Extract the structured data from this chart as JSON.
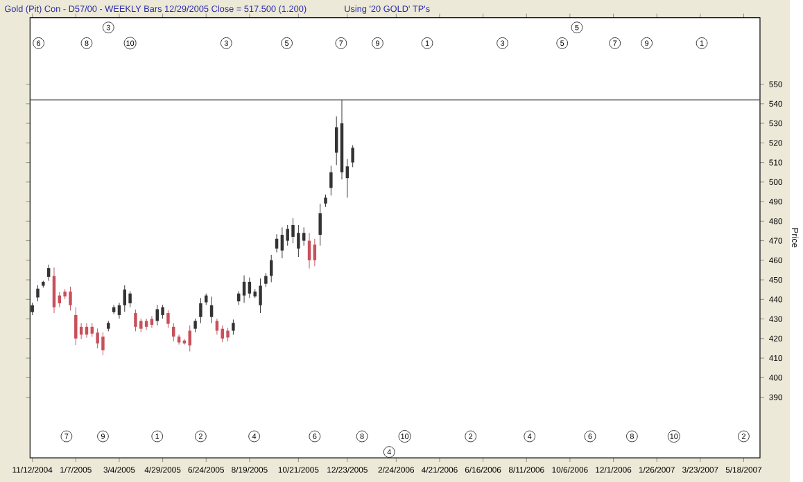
{
  "chart_data": {
    "type": "candlestick",
    "title": "Gold (Pit) Con - D57/00  - WEEKLY Bars  12/29/2005 Close = 517.500 (1.200)",
    "subtitle": "Using '20 GOLD' TP's",
    "ylabel": "Price",
    "x": [
      "2004-11-12",
      "2004-11-19",
      "2004-11-26",
      "2004-12-03",
      "2004-12-10",
      "2004-12-17",
      "2004-12-24",
      "2004-12-31",
      "2005-01-07",
      "2005-01-14",
      "2005-01-21",
      "2005-01-28",
      "2005-02-04",
      "2005-02-11",
      "2005-02-18",
      "2005-02-25",
      "2005-03-04",
      "2005-03-11",
      "2005-03-18",
      "2005-03-25",
      "2005-04-01",
      "2005-04-08",
      "2005-04-15",
      "2005-04-22",
      "2005-04-29",
      "2005-05-06",
      "2005-05-13",
      "2005-05-20",
      "2005-05-27",
      "2005-06-03",
      "2005-06-10",
      "2005-06-17",
      "2005-06-24",
      "2005-07-01",
      "2005-07-08",
      "2005-07-15",
      "2005-07-22",
      "2005-07-29",
      "2005-08-05",
      "2005-08-12",
      "2005-08-19",
      "2005-08-26",
      "2005-09-02",
      "2005-09-09",
      "2005-09-16",
      "2005-09-23",
      "2005-09-30",
      "2005-10-07",
      "2005-10-14",
      "2005-10-21",
      "2005-10-28",
      "2005-11-04",
      "2005-11-11",
      "2005-11-18",
      "2005-11-25",
      "2005-12-02",
      "2005-12-09",
      "2005-12-16",
      "2005-12-23",
      "2005-12-30"
    ],
    "ohlc": [
      [
        433.5,
        438.3,
        432,
        437
      ],
      [
        441,
        447.2,
        439,
        445.5
      ],
      [
        447,
        449.5,
        446,
        449
      ],
      [
        451.5,
        457.7,
        449.5,
        456
      ],
      [
        452,
        456.3,
        433,
        436
      ],
      [
        442,
        443.7,
        436,
        438
      ],
      [
        444,
        445.3,
        440.2,
        441.5
      ],
      [
        444,
        446.5,
        434.4,
        437
      ],
      [
        432,
        436,
        416.7,
        420
      ],
      [
        426,
        427.9,
        419.7,
        422
      ],
      [
        426,
        427.9,
        420.4,
        422
      ],
      [
        426,
        427.9,
        420.9,
        422.5
      ],
      [
        423,
        425.1,
        415,
        417.5
      ],
      [
        421,
        423.2,
        411.5,
        414
      ],
      [
        425,
        429,
        423.7,
        428
      ],
      [
        433.5,
        437.2,
        432.5,
        436
      ],
      [
        432,
        438.3,
        430.2,
        437
      ],
      [
        437,
        447.2,
        433.7,
        445
      ],
      [
        438,
        444.2,
        436,
        443
      ],
      [
        433,
        434.8,
        423.7,
        426
      ],
      [
        429,
        430.2,
        423.2,
        425
      ],
      [
        429,
        430.2,
        424.4,
        426
      ],
      [
        430,
        431.4,
        425.5,
        427
      ],
      [
        429,
        437.2,
        426.7,
        435
      ],
      [
        432,
        437.2,
        430.2,
        436
      ],
      [
        433,
        434.4,
        425.5,
        427.5
      ],
      [
        426,
        427.9,
        418.5,
        421
      ],
      [
        421,
        422,
        416.9,
        418
      ],
      [
        419,
        419.7,
        416.9,
        417.5
      ],
      [
        424,
        426.7,
        413.4,
        416.5
      ],
      [
        425,
        430.2,
        423.2,
        429
      ],
      [
        431,
        440.7,
        427.9,
        438
      ],
      [
        438.5,
        443,
        437.2,
        442
      ],
      [
        431,
        441.4,
        427.9,
        437
      ],
      [
        429,
        430.2,
        422,
        424
      ],
      [
        425,
        426.7,
        418.1,
        420
      ],
      [
        424,
        425.5,
        418.5,
        420.5
      ],
      [
        424,
        429.7,
        422,
        428
      ],
      [
        439,
        444.2,
        437.2,
        443
      ],
      [
        442,
        452.3,
        438.3,
        449
      ],
      [
        443,
        451.2,
        440.7,
        449
      ],
      [
        441.5,
        445.3,
        440.7,
        444
      ],
      [
        437,
        450.7,
        433,
        447
      ],
      [
        448,
        453.5,
        446.5,
        452
      ],
      [
        452,
        462.8,
        448.8,
        460
      ],
      [
        466,
        473.3,
        464,
        471
      ],
      [
        465,
        476.8,
        461,
        473
      ],
      [
        470,
        478,
        467.5,
        476
      ],
      [
        472,
        481.5,
        468.7,
        478
      ],
      [
        466,
        478,
        461.7,
        474
      ],
      [
        470,
        476.8,
        467.5,
        474
      ],
      [
        470,
        474,
        455.8,
        460
      ],
      [
        468,
        471,
        457,
        460
      ],
      [
        473,
        488.9,
        467.5,
        484
      ],
      [
        489,
        493.6,
        487.3,
        492
      ],
      [
        497,
        508.3,
        493.1,
        505
      ],
      [
        515,
        533.5,
        508.7,
        528
      ],
      [
        505,
        542.1,
        501.3,
        530
      ],
      [
        502,
        511.8,
        492,
        508
      ],
      [
        510,
        518.8,
        507.6,
        517.5
      ]
    ],
    "colors": [
      "#333333",
      "#333333",
      "#333333",
      "#333333",
      "#c8505a",
      "#c8505a",
      "#c8505a",
      "#c8505a",
      "#c8505a",
      "#c8505a",
      "#c8505a",
      "#c8505a",
      "#c8505a",
      "#c8505a",
      "#333333",
      "#333333",
      "#333333",
      "#333333",
      "#333333",
      "#c8505a",
      "#c8505a",
      "#c8505a",
      "#c8505a",
      "#333333",
      "#333333",
      "#c8505a",
      "#c8505a",
      "#c8505a",
      "#c8505a",
      "#c8505a",
      "#333333",
      "#333333",
      "#333333",
      "#333333",
      "#c8505a",
      "#c8505a",
      "#c8505a",
      "#333333",
      "#333333",
      "#333333",
      "#333333",
      "#333333",
      "#333333",
      "#333333",
      "#333333",
      "#333333",
      "#333333",
      "#333333",
      "#333333",
      "#333333",
      "#333333",
      "#c8505a",
      "#c8505a",
      "#333333",
      "#333333",
      "#333333",
      "#333333",
      "#333333",
      "#333333",
      "#333333"
    ],
    "xlim": [
      "2004-11-09",
      "2007-06-08"
    ],
    "xticks": [
      {
        "value": "2004-11-12",
        "label": "11/12/2004"
      },
      {
        "value": "2005-01-07",
        "label": "1/7/2005"
      },
      {
        "value": "2005-03-04",
        "label": "3/4/2005"
      },
      {
        "value": "2005-04-29",
        "label": "4/29/2005"
      },
      {
        "value": "2005-06-24",
        "label": "6/24/2005"
      },
      {
        "value": "2005-08-19",
        "label": "8/19/2005"
      },
      {
        "value": "2005-10-21",
        "label": "10/21/2005"
      },
      {
        "value": "2005-12-23",
        "label": "12/23/2005"
      },
      {
        "value": "2006-02-24",
        "label": "2/24/2006"
      },
      {
        "value": "2006-04-21",
        "label": "4/21/2006"
      },
      {
        "value": "2006-06-16",
        "label": "6/16/2006"
      },
      {
        "value": "2006-08-11",
        "label": "8/11/2006"
      },
      {
        "value": "2006-10-06",
        "label": "10/6/2006"
      },
      {
        "value": "2006-12-01",
        "label": "12/1/2006"
      },
      {
        "value": "2007-01-26",
        "label": "1/26/2007"
      },
      {
        "value": "2007-03-23",
        "label": "3/23/2007"
      },
      {
        "value": "2007-05-18",
        "label": "5/18/2007"
      }
    ],
    "ylim": [
      359,
      584
    ],
    "yticks": [
      390,
      400,
      410,
      420,
      430,
      440,
      450,
      460,
      470,
      480,
      490,
      500,
      510,
      520,
      530,
      540,
      550
    ],
    "ref_lines": [
      {
        "axis": "y",
        "value": 542,
        "color": "#555555"
      }
    ],
    "annotations": [
      {
        "text": "3",
        "x": "2005-02-18",
        "y": 579
      },
      {
        "text": "5",
        "x": "2006-10-15",
        "y": 579
      },
      {
        "text": "6",
        "x": "2004-11-20",
        "y": 571
      },
      {
        "text": "8",
        "x": "2005-01-21",
        "y": 571
      },
      {
        "text": "10",
        "x": "2005-03-18",
        "y": 571
      },
      {
        "text": "3",
        "x": "2005-07-20",
        "y": 571
      },
      {
        "text": "5",
        "x": "2005-10-06",
        "y": 571
      },
      {
        "text": "7",
        "x": "2005-12-15",
        "y": 571
      },
      {
        "text": "9",
        "x": "2006-01-31",
        "y": 571
      },
      {
        "text": "1",
        "x": "2006-04-05",
        "y": 571
      },
      {
        "text": "3",
        "x": "2006-07-11",
        "y": 571
      },
      {
        "text": "5",
        "x": "2006-09-26",
        "y": 571
      },
      {
        "text": "7",
        "x": "2006-12-03",
        "y": 571
      },
      {
        "text": "9",
        "x": "2007-01-13",
        "y": 571
      },
      {
        "text": "1",
        "x": "2007-03-25",
        "y": 571
      },
      {
        "text": "7",
        "x": "2004-12-26",
        "y": 370
      },
      {
        "text": "9",
        "x": "2005-02-11",
        "y": 370
      },
      {
        "text": "1",
        "x": "2005-04-22",
        "y": 370
      },
      {
        "text": "2",
        "x": "2005-06-17",
        "y": 370
      },
      {
        "text": "4",
        "x": "2005-08-25",
        "y": 370
      },
      {
        "text": "6",
        "x": "2005-11-11",
        "y": 370
      },
      {
        "text": "8",
        "x": "2006-01-11",
        "y": 370
      },
      {
        "text": "10",
        "x": "2006-03-07",
        "y": 370
      },
      {
        "text": "2",
        "x": "2006-05-31",
        "y": 370
      },
      {
        "text": "4",
        "x": "2006-08-15",
        "y": 370
      },
      {
        "text": "6",
        "x": "2006-11-01",
        "y": 370
      },
      {
        "text": "8",
        "x": "2006-12-25",
        "y": 370
      },
      {
        "text": "10",
        "x": "2007-02-17",
        "y": 370
      },
      {
        "text": "2",
        "x": "2007-05-18",
        "y": 370
      },
      {
        "text": "4",
        "x": "2006-02-15",
        "y": 362
      }
    ]
  }
}
